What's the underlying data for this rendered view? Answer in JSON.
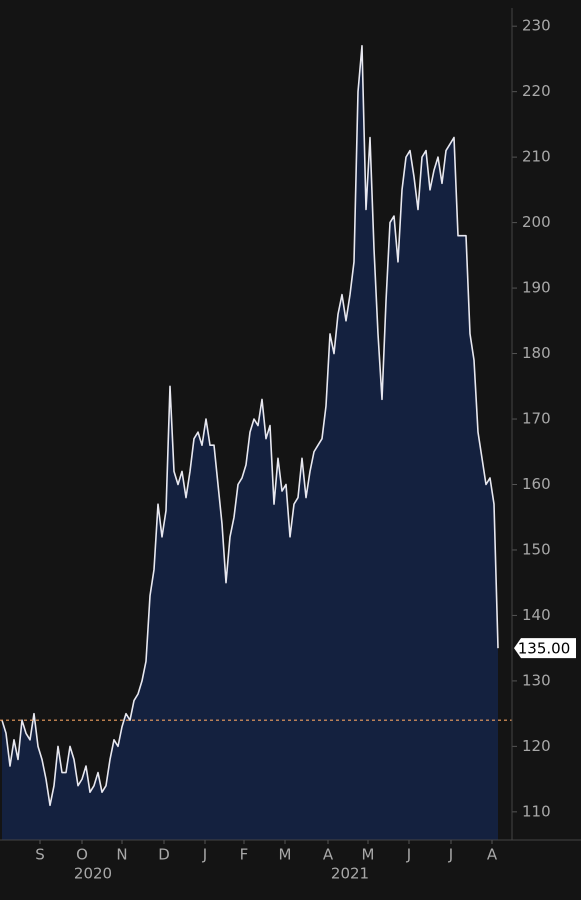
{
  "chart_data": {
    "type": "area",
    "x": [
      0,
      1,
      2,
      3,
      4,
      5,
      6,
      7,
      8,
      9,
      10,
      11,
      12,
      13,
      14,
      15,
      16,
      17,
      18,
      19,
      20,
      21,
      22,
      23,
      24,
      25,
      26,
      27,
      28,
      29,
      30,
      31,
      32,
      33,
      34,
      35,
      36,
      37,
      38,
      39,
      40,
      41,
      42,
      43,
      44,
      45,
      46,
      47,
      48,
      49,
      50,
      51,
      52,
      53,
      54,
      55,
      56,
      57,
      58,
      59,
      60,
      61,
      62,
      63,
      64,
      65,
      66,
      67,
      68,
      69,
      70,
      71,
      72,
      73,
      74,
      75,
      76,
      77,
      78,
      79,
      80,
      81,
      82,
      83,
      84,
      85,
      86,
      87,
      88,
      89,
      90,
      91,
      92,
      93,
      94,
      95,
      96,
      97,
      98,
      99,
      100,
      101,
      102,
      103,
      104,
      105,
      106,
      107,
      108,
      109,
      110,
      111,
      112,
      113,
      114,
      115,
      116,
      117,
      118,
      119,
      120,
      121,
      122,
      123,
      124
    ],
    "values": [
      124,
      122,
      117,
      121,
      118,
      124,
      122,
      121,
      125,
      120,
      118,
      115,
      111,
      114,
      120,
      116,
      116,
      120,
      118,
      114,
      115,
      117,
      113,
      114,
      116,
      113,
      114,
      118,
      121,
      120,
      123,
      125,
      124,
      127,
      128,
      130,
      133,
      143,
      147,
      157,
      152,
      156,
      175,
      162,
      160,
      162,
      158,
      162,
      167,
      168,
      166,
      170,
      166,
      166,
      160,
      154,
      145,
      152,
      155,
      160,
      161,
      163,
      168,
      170,
      169,
      173,
      167,
      169,
      157,
      164,
      159,
      160,
      152,
      157,
      158,
      164,
      158,
      162,
      165,
      166,
      167,
      172,
      183,
      180,
      186,
      189,
      185,
      189,
      194,
      220,
      227,
      202,
      213,
      196,
      183,
      173,
      188,
      200,
      201,
      194,
      205,
      210,
      211,
      207,
      202,
      210,
      211,
      205,
      208,
      210,
      206,
      211,
      212,
      213,
      198,
      198,
      198,
      183,
      179,
      168,
      164,
      160,
      161,
      157,
      135
    ],
    "line_color": "#e8e8f0",
    "fill_color": "#14213f",
    "xlim": [
      0,
      124
    ],
    "xticks": [
      {
        "value": 9.5,
        "label": "S"
      },
      {
        "value": 20,
        "label": "O"
      },
      {
        "value": 30,
        "label": "N"
      },
      {
        "value": 40.5,
        "label": "D"
      },
      {
        "value": 50.75,
        "label": "J"
      },
      {
        "value": 60.5,
        "label": "F"
      },
      {
        "value": 70.75,
        "label": "M"
      },
      {
        "value": 81.5,
        "label": "A"
      },
      {
        "value": 91.5,
        "label": "M"
      },
      {
        "value": 101.75,
        "label": "J"
      },
      {
        "value": 112.25,
        "label": "J"
      },
      {
        "value": 122.5,
        "label": "A"
      }
    ],
    "year_labels": [
      {
        "value": 22.75,
        "label": "2020"
      },
      {
        "value": 87,
        "label": "2021"
      }
    ],
    "ylim": [
      105.7,
      234
    ],
    "yticks": [
      110,
      120,
      130,
      140,
      150,
      160,
      170,
      180,
      190,
      200,
      210,
      220,
      230
    ],
    "reference_line": {
      "value": 124,
      "color": "#f0a060"
    },
    "last_price": {
      "value": 135,
      "label": "135.00"
    }
  }
}
